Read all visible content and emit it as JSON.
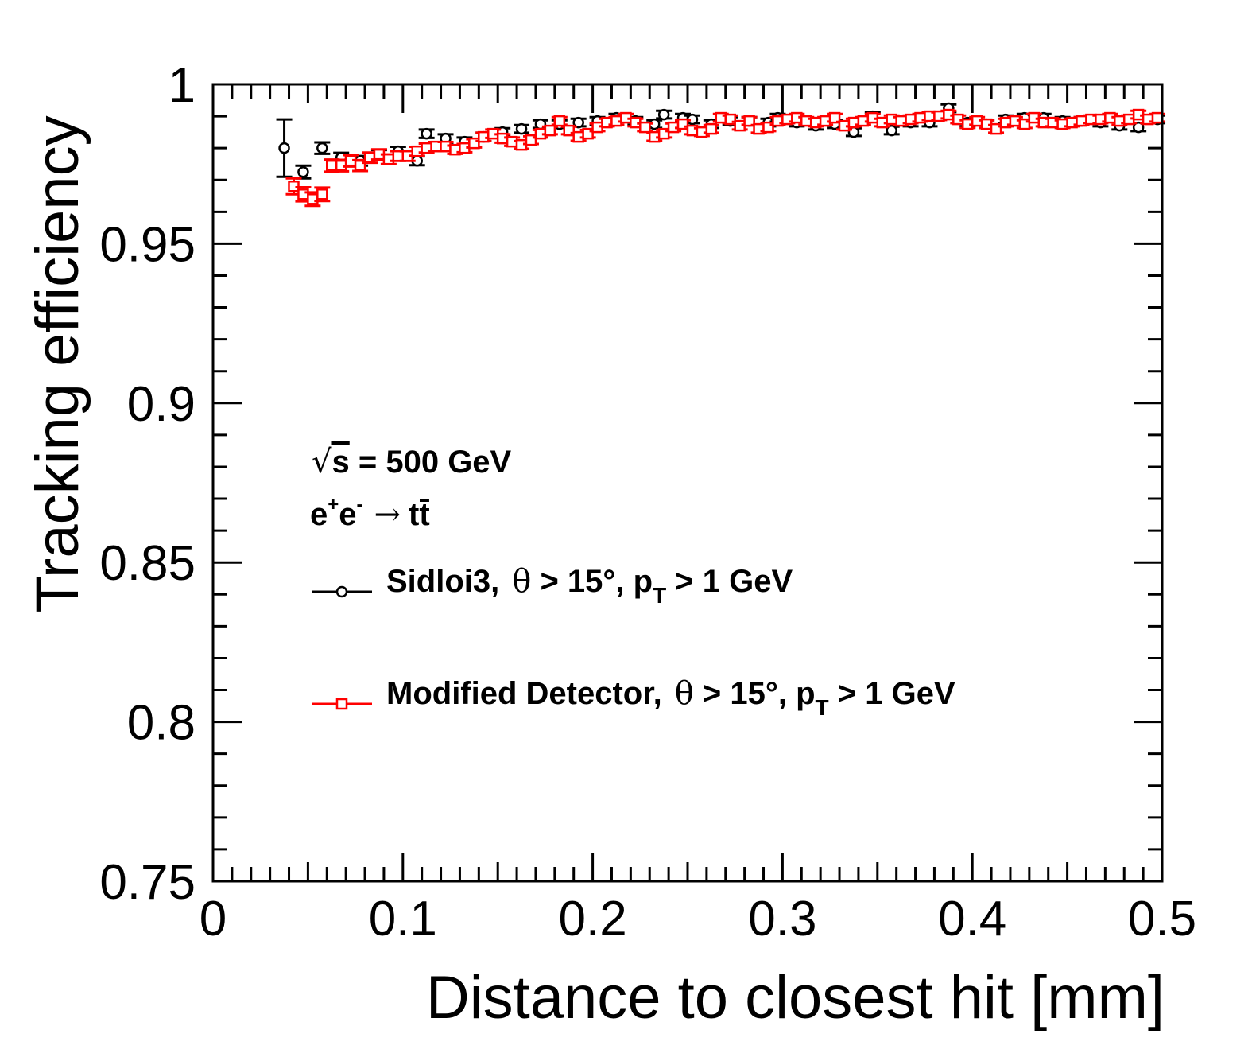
{
  "chart_data": {
    "type": "scatter",
    "xlabel": "Distance to closest hit [mm]",
    "ylabel": "Tracking efficiency",
    "xlim": [
      0,
      0.5
    ],
    "ylim": [
      0.75,
      1.0
    ],
    "xticks": [
      "0",
      "0.1",
      "0.2",
      "0.3",
      "0.4",
      "0.5"
    ],
    "yticks": [
      "0.75",
      "0.8",
      "0.85",
      "0.9",
      "0.95",
      "1"
    ],
    "grid": false,
    "legend_position": "center-left",
    "annotations": {
      "energy": {
        "sqrt": "√",
        "s": "s",
        "rest": " = 500 GeV"
      },
      "process": {
        "e1": "e",
        "plus": "+",
        "e2": "e",
        "minus": "-",
        "arrow": "→",
        "tt": "tt̄"
      }
    },
    "series": [
      {
        "name": "Sidloi3",
        "legend": {
          "name": "Sidloi3,",
          "theta": "θ",
          "cut": " > 15°, p",
          "sub": "T",
          "tail": " > 1 GeV"
        },
        "color": "#000000",
        "marker": "open-circle",
        "x": [
          0.0375,
          0.0475,
          0.0575,
          0.0675,
          0.0775,
          0.0875,
          0.0975,
          0.1075,
          0.1125,
          0.1225,
          0.1325,
          0.1425,
          0.1525,
          0.1625,
          0.1725,
          0.1825,
          0.1925,
          0.2025,
          0.2125,
          0.2225,
          0.2325,
          0.2375,
          0.2475,
          0.2525,
          0.2625,
          0.2725,
          0.2825,
          0.2925,
          0.2975,
          0.3075,
          0.3175,
          0.3275,
          0.3375,
          0.3475,
          0.3575,
          0.3675,
          0.3775,
          0.3875,
          0.3975,
          0.4075,
          0.4175,
          0.4275,
          0.4375,
          0.4475,
          0.4575,
          0.4675,
          0.4775,
          0.4875,
          0.4975
        ],
        "y": [
          0.98,
          0.9725,
          0.98,
          0.977,
          0.976,
          0.978,
          0.979,
          0.976,
          0.9845,
          0.983,
          0.982,
          0.9835,
          0.985,
          0.986,
          0.9875,
          0.9875,
          0.988,
          0.9885,
          0.9895,
          0.9885,
          0.9875,
          0.9905,
          0.9895,
          0.989,
          0.9875,
          0.9885,
          0.9885,
          0.988,
          0.9895,
          0.988,
          0.987,
          0.9875,
          0.985,
          0.99,
          0.9855,
          0.988,
          0.988,
          0.9925,
          0.988,
          0.9875,
          0.989,
          0.9895,
          0.9895,
          0.9885,
          0.9885,
          0.988,
          0.987,
          0.9865,
          0.989
        ],
        "err": [
          0.009,
          0.002,
          0.0018,
          0.0015,
          0.0015,
          0.0014,
          0.0014,
          0.0014,
          0.0013,
          0.0013,
          0.0013,
          0.0013,
          0.0012,
          0.0012,
          0.0012,
          0.0012,
          0.0012,
          0.0012,
          0.0012,
          0.0012,
          0.0012,
          0.0012,
          0.0012,
          0.0012,
          0.0012,
          0.0012,
          0.0012,
          0.0012,
          0.0012,
          0.0012,
          0.0012,
          0.0012,
          0.0012,
          0.0012,
          0.0012,
          0.0012,
          0.0012,
          0.0012,
          0.0012,
          0.0012,
          0.0012,
          0.0012,
          0.0012,
          0.0012,
          0.0012,
          0.0012,
          0.0012,
          0.0012,
          0.0012
        ]
      },
      {
        "name": "Modified Detector",
        "legend": {
          "name": "Modified Detector,",
          "theta": "θ",
          "cut": " > 15°, p",
          "sub": "T",
          "tail": " > 1 GeV"
        },
        "color": "#ff0000",
        "marker": "open-square",
        "x": [
          0.0425,
          0.0475,
          0.0525,
          0.0575,
          0.0625,
          0.0675,
          0.0725,
          0.0775,
          0.0825,
          0.0875,
          0.0925,
          0.0975,
          0.1025,
          0.1075,
          0.1125,
          0.1175,
          0.1225,
          0.1275,
          0.1325,
          0.1375,
          0.1425,
          0.1475,
          0.1525,
          0.1575,
          0.1625,
          0.1675,
          0.1725,
          0.1775,
          0.1825,
          0.1875,
          0.1925,
          0.1975,
          0.2025,
          0.2075,
          0.2125,
          0.2175,
          0.2225,
          0.2275,
          0.2325,
          0.2375,
          0.2425,
          0.2475,
          0.2525,
          0.2575,
          0.2625,
          0.2675,
          0.2725,
          0.2775,
          0.2825,
          0.2875,
          0.2925,
          0.2975,
          0.3025,
          0.3075,
          0.3125,
          0.3175,
          0.3225,
          0.3275,
          0.3325,
          0.3375,
          0.3425,
          0.3475,
          0.3525,
          0.3575,
          0.3625,
          0.3675,
          0.3725,
          0.3775,
          0.3825,
          0.3875,
          0.3925,
          0.3975,
          0.4025,
          0.4075,
          0.4125,
          0.4175,
          0.4225,
          0.4275,
          0.4325,
          0.4375,
          0.4425,
          0.4475,
          0.4525,
          0.4575,
          0.4625,
          0.4675,
          0.4725,
          0.4775,
          0.4825,
          0.4875,
          0.4925,
          0.4975
        ],
        "y": [
          0.968,
          0.9655,
          0.964,
          0.9655,
          0.9745,
          0.9745,
          0.976,
          0.9745,
          0.977,
          0.978,
          0.9765,
          0.9775,
          0.9775,
          0.979,
          0.98,
          0.9805,
          0.9805,
          0.9795,
          0.98,
          0.9815,
          0.9835,
          0.9845,
          0.983,
          0.982,
          0.981,
          0.9825,
          0.9845,
          0.9855,
          0.9885,
          0.9855,
          0.9835,
          0.9845,
          0.9865,
          0.988,
          0.9885,
          0.9895,
          0.988,
          0.9865,
          0.9835,
          0.9845,
          0.9865,
          0.9875,
          0.9855,
          0.985,
          0.986,
          0.9895,
          0.989,
          0.987,
          0.9885,
          0.986,
          0.9865,
          0.9885,
          0.989,
          0.9895,
          0.9885,
          0.988,
          0.9885,
          0.9895,
          0.987,
          0.988,
          0.9885,
          0.9895,
          0.988,
          0.989,
          0.9885,
          0.989,
          0.9895,
          0.99,
          0.99,
          0.9905,
          0.989,
          0.9875,
          0.9885,
          0.9875,
          0.986,
          0.988,
          0.9885,
          0.9875,
          0.9895,
          0.988,
          0.988,
          0.9875,
          0.988,
          0.9885,
          0.989,
          0.989,
          0.9895,
          0.9885,
          0.989,
          0.9905,
          0.989,
          0.9895
        ],
        "err": [
          0.0025,
          0.0022,
          0.0021,
          0.0021,
          0.0019,
          0.0018,
          0.0018,
          0.0017,
          0.0016,
          0.0016,
          0.0015,
          0.0015,
          0.0015,
          0.0014,
          0.0014,
          0.0014,
          0.0014,
          0.0013,
          0.0013,
          0.0013,
          0.0013,
          0.0013,
          0.0013,
          0.0013,
          0.0012,
          0.0012,
          0.0012,
          0.0012,
          0.0012,
          0.0012,
          0.0012,
          0.0012,
          0.0012,
          0.0012,
          0.0012,
          0.0012,
          0.0012,
          0.0012,
          0.0012,
          0.0012,
          0.0012,
          0.0012,
          0.0012,
          0.0012,
          0.0012,
          0.0012,
          0.0012,
          0.0012,
          0.0012,
          0.0012,
          0.0012,
          0.0012,
          0.0012,
          0.0012,
          0.0012,
          0.0012,
          0.0012,
          0.0012,
          0.0012,
          0.0012,
          0.0012,
          0.0012,
          0.0012,
          0.0012,
          0.0012,
          0.0012,
          0.0012,
          0.0012,
          0.0012,
          0.0012,
          0.0012,
          0.0012,
          0.0012,
          0.0012,
          0.0012,
          0.0012,
          0.0012,
          0.0012,
          0.0012,
          0.0012,
          0.0012,
          0.0012,
          0.0012,
          0.0012,
          0.0012,
          0.0012,
          0.0012,
          0.0012,
          0.0012,
          0.0012,
          0.0012,
          0.0012
        ]
      }
    ]
  }
}
